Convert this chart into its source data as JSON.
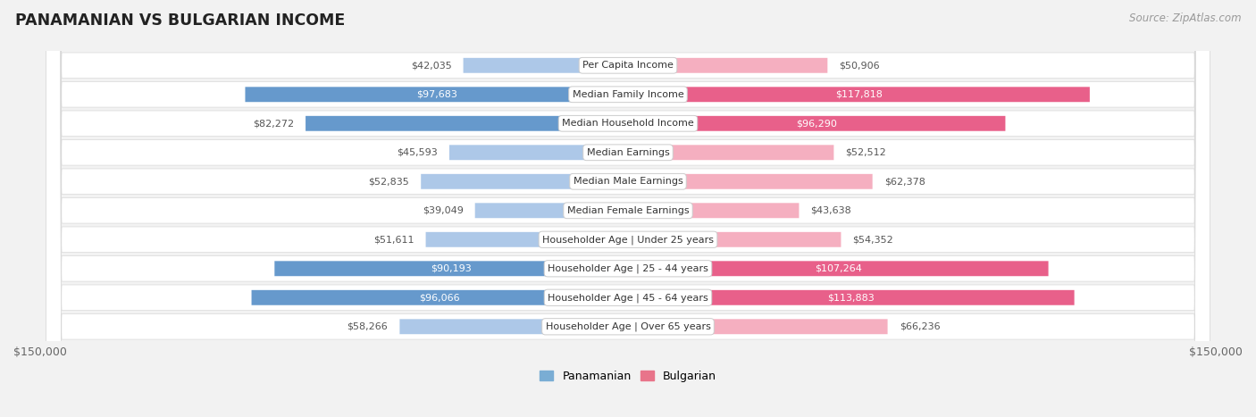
{
  "title": "PANAMANIAN VS BULGARIAN INCOME",
  "source": "Source: ZipAtlas.com",
  "categories": [
    "Per Capita Income",
    "Median Family Income",
    "Median Household Income",
    "Median Earnings",
    "Median Male Earnings",
    "Median Female Earnings",
    "Householder Age | Under 25 years",
    "Householder Age | 25 - 44 years",
    "Householder Age | 45 - 64 years",
    "Householder Age | Over 65 years"
  ],
  "panamanian_values": [
    42035,
    97683,
    82272,
    45593,
    52835,
    39049,
    51611,
    90193,
    96066,
    58266
  ],
  "bulgarian_values": [
    50906,
    117818,
    96290,
    52512,
    62378,
    43638,
    54352,
    107264,
    113883,
    66236
  ],
  "panamanian_labels": [
    "$42,035",
    "$97,683",
    "$82,272",
    "$45,593",
    "$52,835",
    "$39,049",
    "$51,611",
    "$90,193",
    "$96,066",
    "$58,266"
  ],
  "bulgarian_labels": [
    "$50,906",
    "$117,818",
    "$96,290",
    "$52,512",
    "$62,378",
    "$43,638",
    "$54,352",
    "$107,264",
    "$113,883",
    "$66,236"
  ],
  "pan_label_inside": [
    false,
    true,
    false,
    false,
    false,
    false,
    false,
    true,
    true,
    false
  ],
  "bul_label_inside": [
    false,
    true,
    true,
    false,
    false,
    false,
    false,
    true,
    true,
    false
  ],
  "max_value": 150000,
  "panamanian_color_light": "#adc8e8",
  "panamanian_color_dark": "#6699cc",
  "bulgarian_color_light": "#f5afc0",
  "bulgarian_color_dark": "#e8608a",
  "bg_color": "#f2f2f2",
  "row_bg": "#ffffff",
  "row_border": "#d8d8d8",
  "title_color": "#222222",
  "source_color": "#999999",
  "label_white": "#ffffff",
  "label_dark": "#555555",
  "cat_label_color": "#333333",
  "axis_label_color": "#666666",
  "legend_pan_color": "#7aadd4",
  "legend_bul_color": "#e8748a"
}
